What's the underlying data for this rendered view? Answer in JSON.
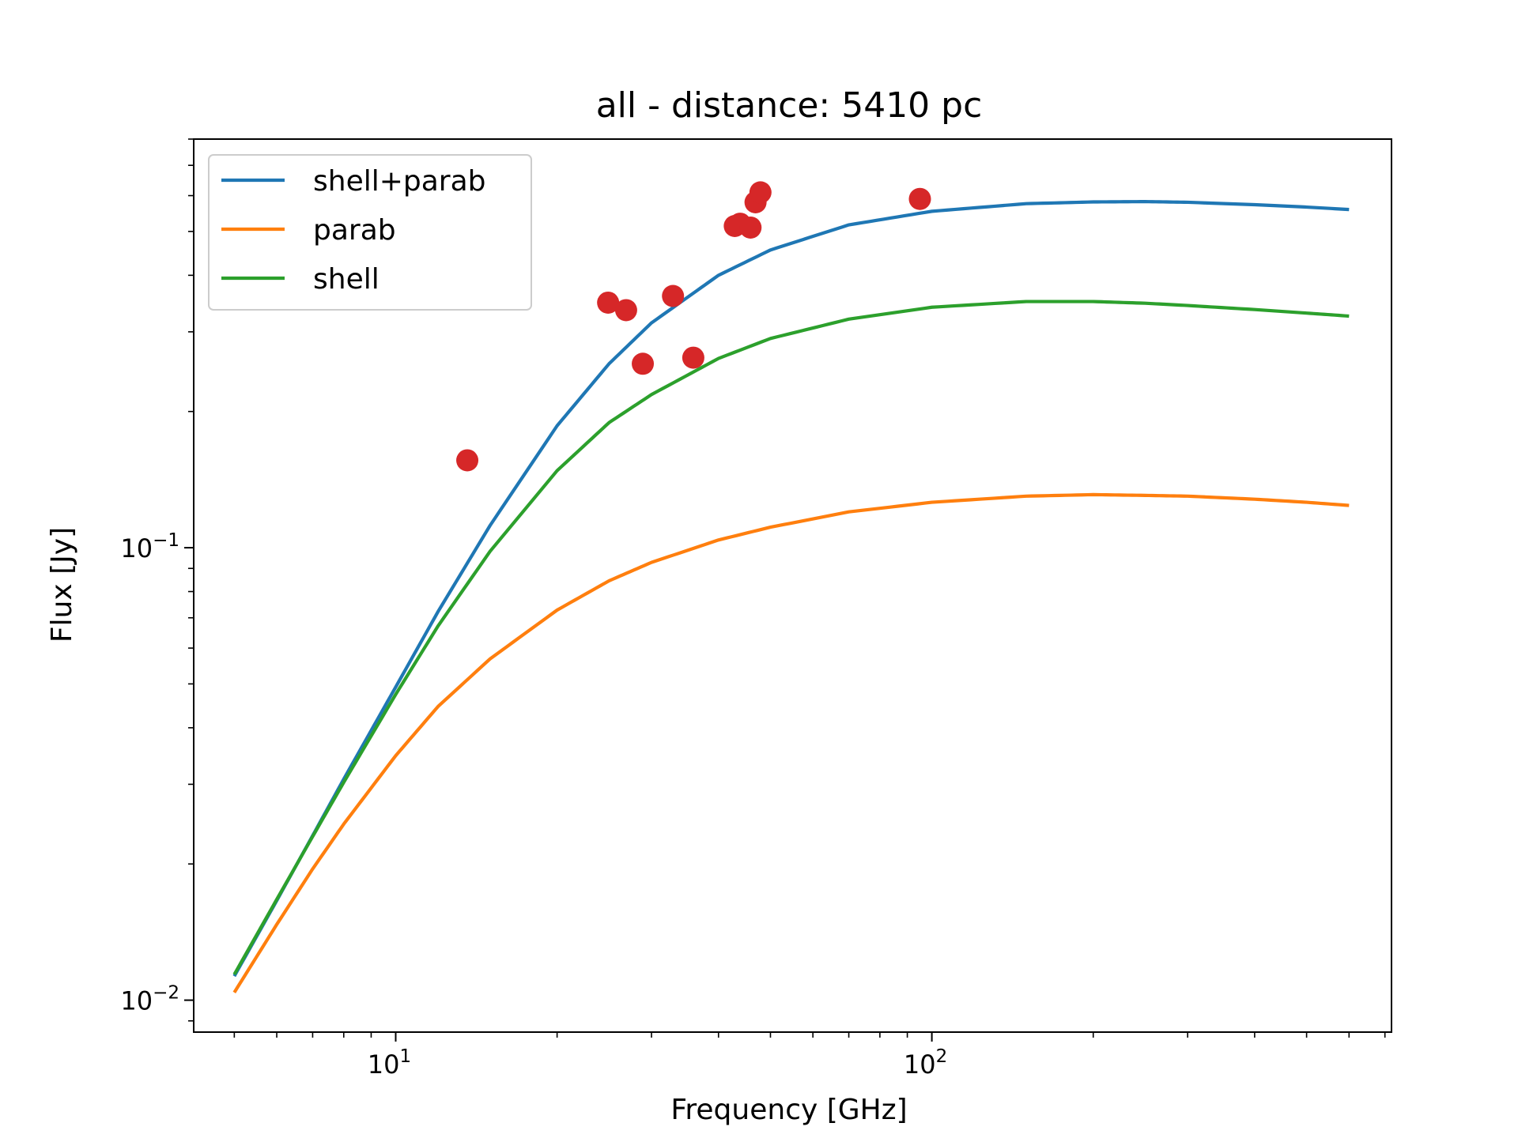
{
  "chart_data": {
    "type": "line",
    "title": "all - distance: 5410 pc",
    "xlabel": "Frequency [GHz]",
    "ylabel": "Flux [Jy]",
    "xscale": "log",
    "yscale": "log",
    "xlim": [
      4.2,
      720
    ],
    "ylim": [
      0.0085,
      0.8
    ],
    "x_major_ticks": [
      10,
      100
    ],
    "x_tick_labels": [
      "10^1",
      "10^2"
    ],
    "y_major_ticks": [
      0.01,
      0.1
    ],
    "y_tick_labels": [
      "10^-2",
      "10^-1"
    ],
    "grid": false,
    "legend_position": "upper left",
    "colors": {
      "shell+parab": "#1f77b4",
      "parab": "#ff7f0e",
      "shell": "#2ca02c",
      "observations": "#d62728"
    },
    "series": [
      {
        "name": "shell+parab",
        "color": "#1f77b4",
        "x": [
          5,
          6,
          7,
          8,
          10,
          12,
          15,
          20,
          25,
          30,
          40,
          50,
          70,
          100,
          150,
          200,
          250,
          300,
          400,
          500,
          600
        ],
        "y": [
          0.0113,
          0.0166,
          0.0231,
          0.0308,
          0.0492,
          0.0723,
          0.112,
          0.186,
          0.255,
          0.314,
          0.4,
          0.455,
          0.517,
          0.554,
          0.576,
          0.581,
          0.582,
          0.58,
          0.573,
          0.566,
          0.559
        ]
      },
      {
        "name": "parab",
        "color": "#ff7f0e",
        "x": [
          5,
          6,
          7,
          8,
          10,
          12,
          15,
          20,
          25,
          30,
          40,
          50,
          70,
          100,
          150,
          200,
          250,
          300,
          400,
          500,
          600
        ],
        "y": [
          0.0104,
          0.0147,
          0.0195,
          0.0245,
          0.0347,
          0.0446,
          0.0568,
          0.0728,
          0.0845,
          0.0928,
          0.104,
          0.111,
          0.12,
          0.126,
          0.13,
          0.131,
          0.1305,
          0.13,
          0.128,
          0.126,
          0.124
        ]
      },
      {
        "name": "shell",
        "color": "#2ca02c",
        "x": [
          5,
          6,
          7,
          8,
          10,
          12,
          15,
          20,
          25,
          30,
          40,
          50,
          70,
          100,
          150,
          200,
          250,
          300,
          400,
          500,
          600
        ],
        "y": [
          0.0114,
          0.0167,
          0.023,
          0.0303,
          0.0474,
          0.0672,
          0.0982,
          0.148,
          0.189,
          0.218,
          0.262,
          0.29,
          0.32,
          0.34,
          0.35,
          0.35,
          0.347,
          0.343,
          0.336,
          0.33,
          0.325
        ]
      }
    ],
    "points": {
      "name": "observations",
      "color": "#d62728",
      "x": [
        13.6,
        24.9,
        26.9,
        28.9,
        32.9,
        35.9,
        42.9,
        43.9,
        45.9,
        46.9,
        47.9,
        95
      ],
      "y": [
        0.156,
        0.348,
        0.335,
        0.255,
        0.36,
        0.263,
        0.514,
        0.52,
        0.51,
        0.58,
        0.61,
        0.59
      ]
    }
  }
}
